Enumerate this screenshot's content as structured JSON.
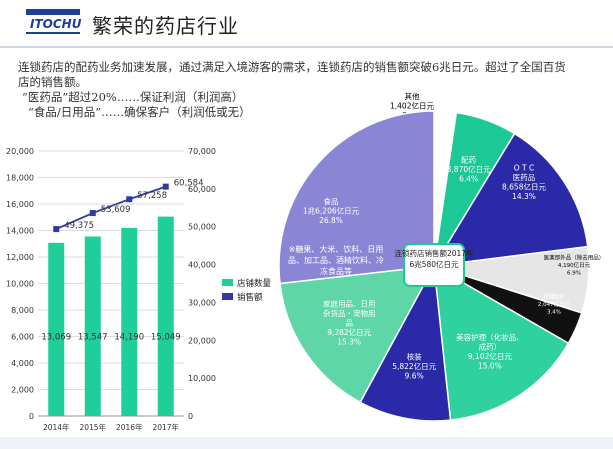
{
  "header": {
    "logo_text": "ITOCHU",
    "title": "繁荣的药店行业"
  },
  "intro": {
    "line1": "连锁药店的配药业务加速发展，通过满足入境游客的需求，连锁药店的销售额突破6兆日元。超过了全国百货",
    "line2": "店的销售额。",
    "line3": "“医药品”超过20%……保证利润（利润高）",
    "line4": "“食品/日用品”……确保客户（利润低或无）"
  },
  "chart_data": [
    {
      "type": "bar",
      "categories": [
        "2014年",
        "2015年",
        "2016年",
        "2017年"
      ],
      "series": [
        {
          "name": "店铺数量",
          "type": "bar",
          "axis": "left",
          "color": "#1fcf9a",
          "values": [
            13069,
            13547,
            14190,
            15049
          ],
          "labels": [
            "13,069",
            "13,547",
            "14,190",
            "15,049"
          ]
        },
        {
          "name": "销售额",
          "type": "line",
          "axis": "right",
          "color": "#2e3aa6",
          "values": [
            49375,
            53609,
            57258,
            60584
          ],
          "labels": [
            "49,375",
            "53,609",
            "57,258",
            "60,584"
          ]
        }
      ],
      "y_left": {
        "min": 0,
        "max": 20000,
        "step": 2000,
        "ticks": [
          "0",
          "2,000",
          "4,000",
          "6,000",
          "8,000",
          "10,000",
          "12,000",
          "14,000",
          "16,000",
          "18,000",
          "20,000"
        ]
      },
      "y_right": {
        "min": 0,
        "max": 70000,
        "step": 10000,
        "ticks": [
          "0",
          "10,000",
          "20,000",
          "30,000",
          "40,000",
          "50,000",
          "60,000",
          "70,000"
        ]
      },
      "grid": true,
      "legend_position": "right"
    },
    {
      "type": "pie",
      "center_label": [
        "连锁药店销售额2017年",
        "6兆580亿日元"
      ],
      "slices": [
        {
          "name": "其他",
          "value": 2.3,
          "amount": "1,402亿日元",
          "pct": "2.3%",
          "color": "#ffffff",
          "text_color": "#000"
        },
        {
          "name": "配药",
          "value": 6.4,
          "amount": "3,870亿日元",
          "pct": "6.4%",
          "color": "#1cc996",
          "text_color": "#fff"
        },
        {
          "name": "O T C 医药品",
          "value": 14.3,
          "amount": "8,658亿日元",
          "pct": "14.3%",
          "color": "#2a2aa8",
          "text_color": "#fff"
        },
        {
          "name": "医薬部外品（除去用品）",
          "value": 6.9,
          "amount": "4,190亿日元",
          "pct": "6.9%",
          "color": "#e6e6e6",
          "text_color": "#000"
        },
        {
          "name": "保健医药",
          "value": 3.4,
          "amount": "2,047亿日元",
          "pct": "3.4%",
          "color": "#111111",
          "text_color": "#fff"
        },
        {
          "name": "美容护理（化妆品、成药）",
          "value": 15.0,
          "amount": "9,102亿日元",
          "pct": "15.0%",
          "color": "#2fd19e",
          "text_color": "#fff"
        },
        {
          "name": "核装",
          "value": 9.6,
          "amount": "5,822亿日元",
          "pct": "9.6%",
          "color": "#2a2aa8",
          "text_color": "#fff"
        },
        {
          "name": "家庭用品、日用杂货品・宠物用品",
          "value": 15.3,
          "amount": "9,282亿日元",
          "pct": "15.3%",
          "color": "#5fd6a8",
          "text_color": "#fff"
        },
        {
          "name": "食品",
          "value": 26.8,
          "amount": "1兆6,206亿日元",
          "pct": "26.8%",
          "color": "#8b85d6",
          "text_color": "#fff",
          "note": "※糖果、大米、饮料、日用品、加工品、酒精饮料、冷冻食品等"
        }
      ]
    }
  ]
}
